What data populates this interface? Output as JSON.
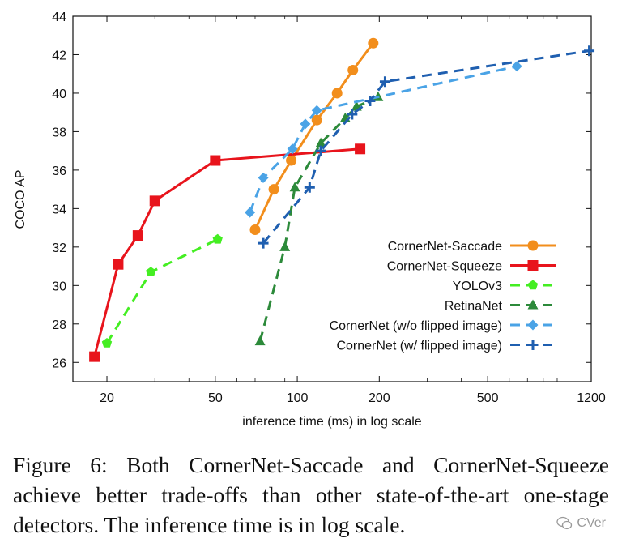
{
  "chart_data": {
    "type": "line",
    "xscale": "log",
    "xlabel": "inference time (ms) in log scale",
    "ylabel": "COCO AP",
    "xlim": [
      15,
      1200
    ],
    "ylim": [
      25,
      44
    ],
    "xticks": [
      20,
      50,
      100,
      200,
      500,
      1200
    ],
    "yticks": [
      26,
      28,
      30,
      32,
      34,
      36,
      38,
      40,
      42,
      44
    ],
    "legend_position": "bottom-right",
    "series": [
      {
        "name": "CornerNet-Saccade",
        "color": "#f28e1c",
        "marker": "circle",
        "dashed": false,
        "x": [
          70,
          82,
          95,
          118,
          140,
          160,
          190
        ],
        "y": [
          32.9,
          35.0,
          36.5,
          38.6,
          40.0,
          41.2,
          42.6
        ]
      },
      {
        "name": "CornerNet-Squeeze",
        "color": "#e8141c",
        "marker": "square",
        "dashed": false,
        "x": [
          18,
          22,
          26,
          30,
          50,
          170
        ],
        "y": [
          26.3,
          31.1,
          32.6,
          34.4,
          36.5,
          37.1
        ]
      },
      {
        "name": "YOLOv3",
        "color": "#44ee22",
        "marker": "pentagon",
        "dashed": true,
        "x": [
          20,
          29,
          51
        ],
        "y": [
          27.0,
          30.7,
          32.4
        ]
      },
      {
        "name": "RetinaNet",
        "color": "#2c8a3a",
        "marker": "triangle",
        "dashed": true,
        "x": [
          73,
          90,
          98,
          122,
          150,
          165,
          198
        ],
        "y": [
          27.1,
          32.0,
          35.1,
          37.4,
          38.7,
          39.3,
          39.8
        ]
      },
      {
        "name": "CornerNet (w/o flipped image)",
        "color": "#4aa3e6",
        "marker": "diamond",
        "dashed": true,
        "x": [
          67,
          75,
          96,
          107,
          118,
          640
        ],
        "y": [
          33.8,
          35.6,
          37.1,
          38.4,
          39.1,
          41.4
        ]
      },
      {
        "name": "CornerNet (w/ flipped image)",
        "color": "#1f5fb0",
        "marker": "plus",
        "dashed": true,
        "x": [
          75,
          111,
          122,
          159,
          185,
          210,
          1180
        ],
        "y": [
          32.2,
          35.1,
          37.0,
          38.9,
          39.6,
          40.6,
          42.2
        ]
      }
    ]
  },
  "caption": "Figure 6: Both CornerNet-Saccade and CornerNet-Squeeze achieve better trade-offs than other state-of-the-art one-stage detectors. The inference time is in log scale.",
  "watermark": "CVer"
}
